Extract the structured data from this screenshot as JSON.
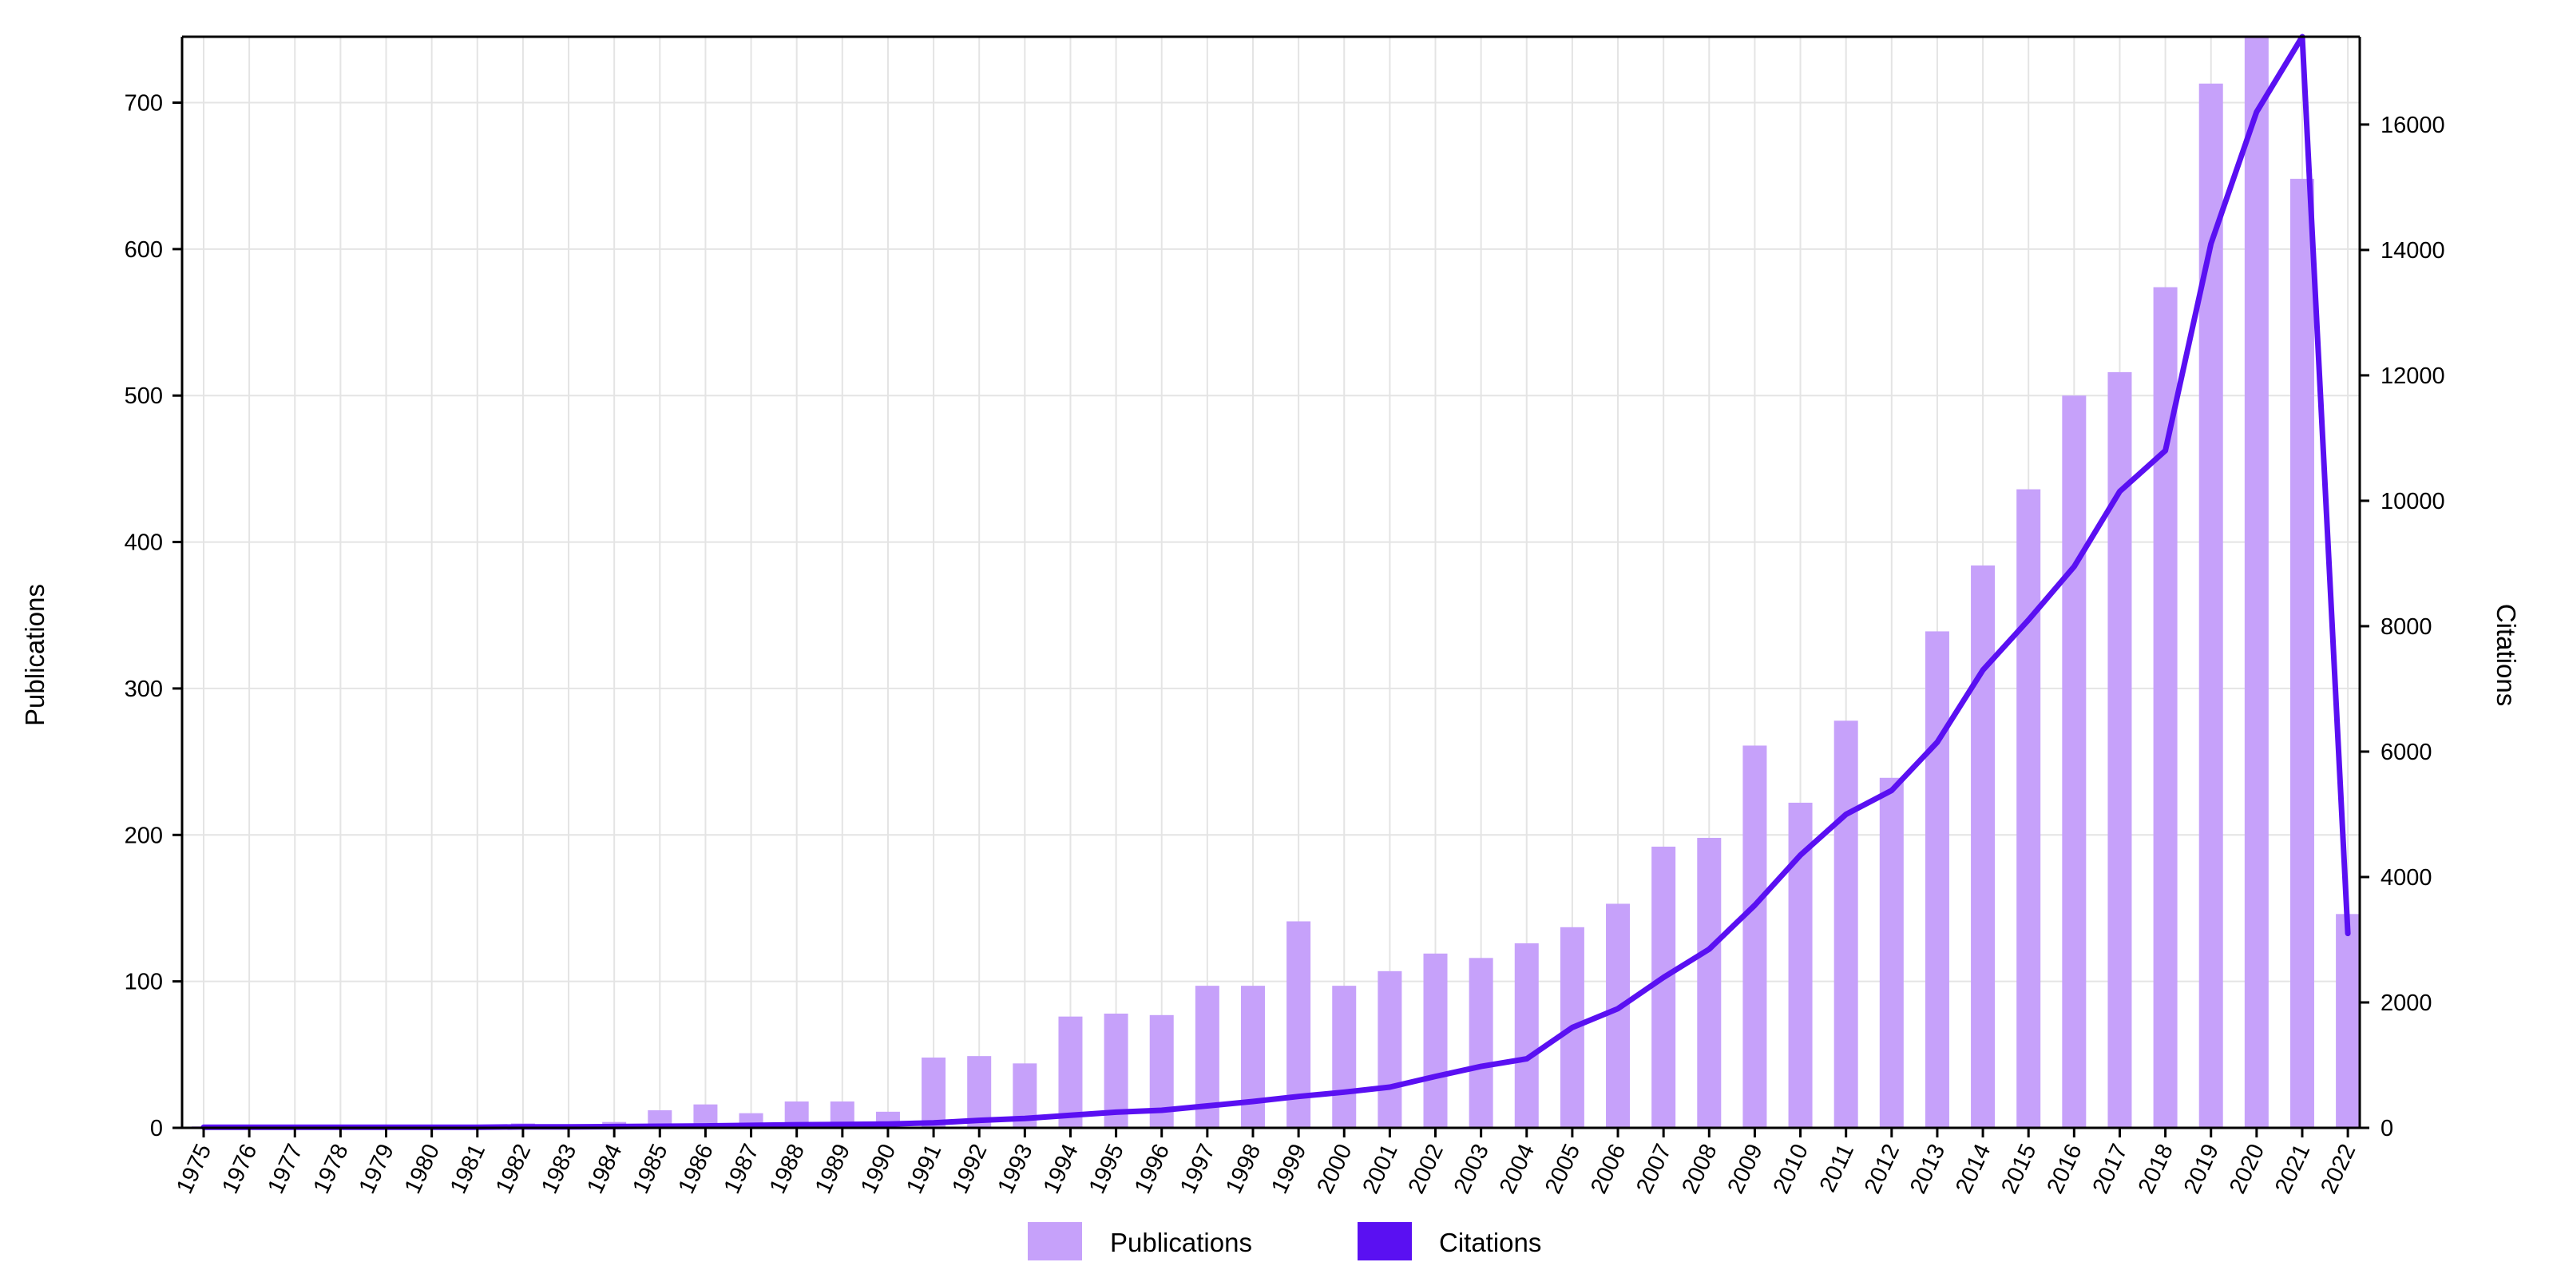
{
  "chart_data": {
    "type": "bar",
    "title": "",
    "xlabel": "",
    "ylabel": "Publications",
    "y2label": "Citations",
    "ylim": [
      0,
      745
    ],
    "y2lim": [
      0,
      17400
    ],
    "yticks": [
      0,
      100,
      200,
      300,
      400,
      500,
      600,
      700
    ],
    "y2ticks": [
      0,
      2000,
      4000,
      6000,
      8000,
      10000,
      12000,
      14000,
      16000
    ],
    "grid": true,
    "legend_position": "bottom-center",
    "categories": [
      "1975",
      "1976",
      "1977",
      "1978",
      "1979",
      "1980",
      "1981",
      "1982",
      "1983",
      "1984",
      "1985",
      "1986",
      "1987",
      "1988",
      "1989",
      "1990",
      "1991",
      "1992",
      "1993",
      "1994",
      "1995",
      "1996",
      "1997",
      "1998",
      "1999",
      "2000",
      "2001",
      "2002",
      "2003",
      "2004",
      "2005",
      "2006",
      "2007",
      "2008",
      "2009",
      "2010",
      "2011",
      "2012",
      "2013",
      "2014",
      "2015",
      "2016",
      "2017",
      "2018",
      "2019",
      "2020",
      "2021",
      "2022"
    ],
    "series": [
      {
        "name": "Publications",
        "type": "bar",
        "axis": "left",
        "color": "#c6a1fa",
        "values": [
          1,
          1,
          1,
          1,
          1,
          1,
          1,
          3,
          2,
          4,
          12,
          16,
          10,
          18,
          18,
          11,
          48,
          49,
          44,
          76,
          78,
          77,
          97,
          97,
          141,
          97,
          107,
          119,
          116,
          126,
          137,
          153,
          192,
          198,
          261,
          222,
          278,
          239,
          339,
          384,
          436,
          500,
          516,
          574,
          713,
          745,
          648,
          146
        ]
      },
      {
        "name": "Citations",
        "type": "line",
        "axis": "right",
        "color": "#5a10f2",
        "values": [
          10,
          10,
          10,
          10,
          10,
          10,
          10,
          15,
          15,
          20,
          25,
          30,
          40,
          50,
          55,
          60,
          80,
          120,
          150,
          200,
          250,
          280,
          350,
          420,
          500,
          570,
          650,
          820,
          980,
          1100,
          1600,
          1900,
          2400,
          2850,
          3550,
          4350,
          5000,
          5380,
          6150,
          7300,
          8100,
          8950,
          10150,
          10800,
          14100,
          16200,
          17400,
          3100
        ]
      }
    ]
  }
}
